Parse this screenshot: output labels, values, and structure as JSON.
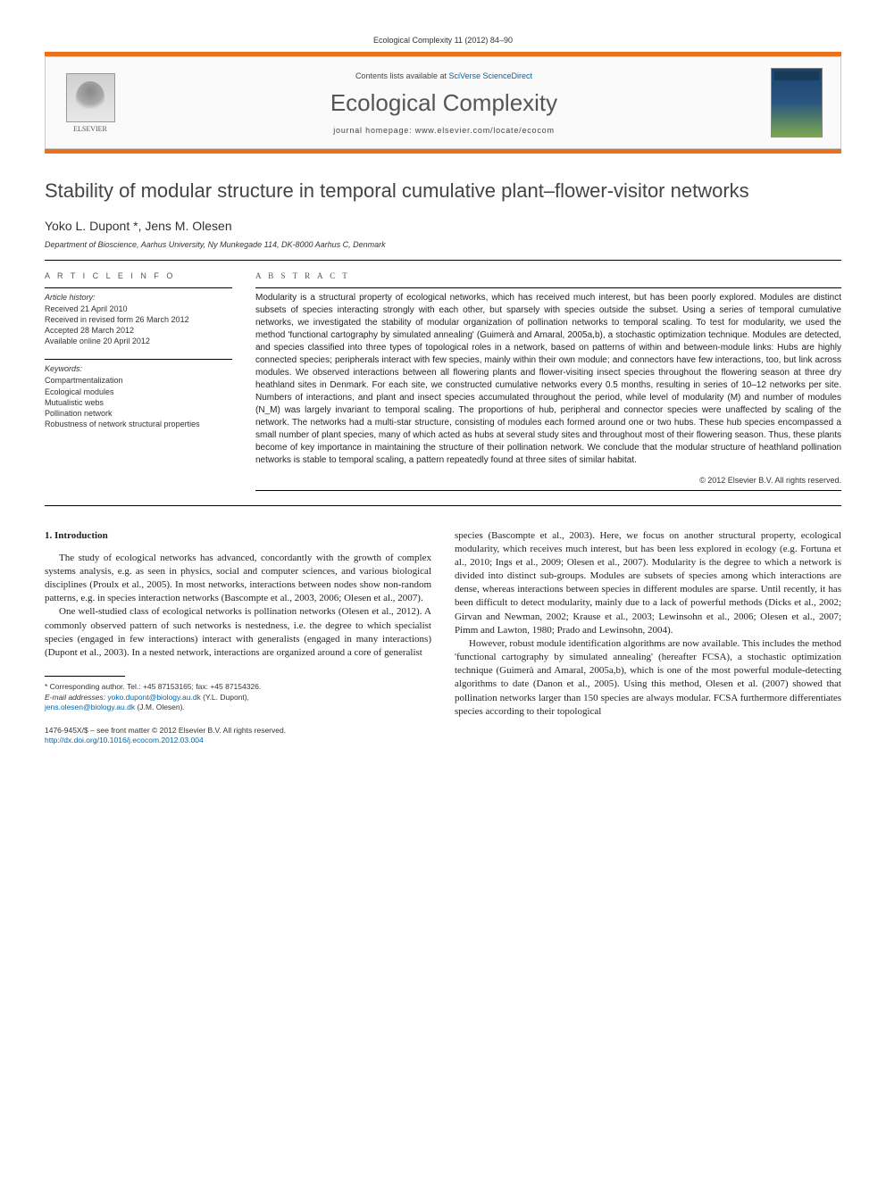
{
  "header": {
    "citation": "Ecological Complexity 11 (2012) 84–90",
    "contents_prefix": "Contents lists available at ",
    "contents_link": "SciVerse ScienceDirect",
    "journal_title": "Ecological Complexity",
    "homepage_prefix": "journal homepage: ",
    "homepage_url": "www.elsevier.com/locate/ecocom",
    "publisher": "ELSEVIER"
  },
  "article": {
    "title": "Stability of modular structure in temporal cumulative plant–flower-visitor networks",
    "authors": "Yoko L. Dupont *, Jens M. Olesen",
    "affiliation": "Department of Bioscience, Aarhus University, Ny Munkegade 114, DK-8000 Aarhus C, Denmark"
  },
  "article_info": {
    "heading": "A R T I C L E   I N F O",
    "history_label": "Article history:",
    "history": [
      "Received 21 April 2010",
      "Received in revised form 26 March 2012",
      "Accepted 28 March 2012",
      "Available online 20 April 2012"
    ],
    "keywords_label": "Keywords:",
    "keywords": [
      "Compartmentalization",
      "Ecological modules",
      "Mutualistic webs",
      "Pollination network",
      "Robustness of network structural properties"
    ]
  },
  "abstract": {
    "heading": "A B S T R A C T",
    "text_full": "Modularity is a structural property of ecological networks, which has received much interest, but has been poorly explored. Modules are distinct subsets of species interacting strongly with each other, but sparsely with species outside the subset. Using a series of temporal cumulative networks, we investigated the stability of modular organization of pollination networks to temporal scaling. To test for modularity, we used the method 'functional cartography by simulated annealing' (Guimerà and Amaral, 2005a,b), a stochastic optimization technique. Modules are detected, and species classified into three types of topological roles in a network, based on patterns of within and between-module links: Hubs are highly connected species; peripherals interact with few species, mainly within their own module; and connectors have few interactions, too, but link across modules. We observed interactions between all flowering plants and flower-visiting insect species throughout the flowering season at three dry heathland sites in Denmark. For each site, we constructed cumulative networks every 0.5 months, resulting in series of 10–12 networks per site. Numbers of interactions, and plant and insect species accumulated throughout the period, while level of modularity (M) and number of modules (N_M) was largely invariant to temporal scaling. The proportions of hub, peripheral and connector species were unaffected by scaling of the network. The networks had a multi-star structure, consisting of modules each formed around one or two hubs. These hub species encompassed a small number of plant species, many of which acted as hubs at several study sites and throughout most of their flowering season. Thus, these plants become of key importance in maintaining the structure of their pollination network. We conclude that the modular structure of heathland pollination networks is stable to temporal scaling, a pattern repeatedly found at three sites of similar habitat.",
    "copyright": "© 2012 Elsevier B.V. All rights reserved."
  },
  "body": {
    "section_heading": "1. Introduction",
    "col1_p1": "The study of ecological networks has advanced, concordantly with the growth of complex systems analysis, e.g. as seen in physics, social and computer sciences, and various biological disciplines (Proulx et al., 2005). In most networks, interactions between nodes show non-random patterns, e.g. in species interaction networks (Bascompte et al., 2003, 2006; Olesen et al., 2007).",
    "col1_p2": "One well-studied class of ecological networks is pollination networks (Olesen et al., 2012). A commonly observed pattern of such networks is nestedness, i.e. the degree to which specialist species (engaged in few interactions) interact with generalists (engaged in many interactions) (Dupont et al., 2003). In a nested network, interactions are organized around a core of generalist",
    "col2_p1": "species (Bascompte et al., 2003). Here, we focus on another structural property, ecological modularity, which receives much interest, but has been less explored in ecology (e.g. Fortuna et al., 2010; Ings et al., 2009; Olesen et al., 2007). Modularity is the degree to which a network is divided into distinct sub-groups. Modules are subsets of species among which interactions are dense, whereas interactions between species in different modules are sparse. Until recently, it has been difficult to detect modularity, mainly due to a lack of powerful methods (Dicks et al., 2002; Girvan and Newman, 2002; Krause et al., 2003; Lewinsohn et al., 2006; Olesen et al., 2007; Pimm and Lawton, 1980; Prado and Lewinsohn, 2004).",
    "col2_p2": "However, robust module identification algorithms are now available. This includes the method 'functional cartography by simulated annealing' (hereafter FCSA), a stochastic optimization technique (Guimerà and Amaral, 2005a,b), which is one of the most powerful module-detecting algorithms to date (Danon et al., 2005). Using this method, Olesen et al. (2007) showed that pollination networks larger than 150 species are always modular. FCSA furthermore differentiates species according to their topological"
  },
  "footnote": {
    "corr_text": "* Corresponding author. Tel.: +45 87153165; fax: +45 87154326.",
    "email_label": "E-mail addresses: ",
    "email1": "yoko.dupont@biology.au.dk",
    "email1_who": " (Y.L. Dupont),",
    "email2": "jens.olesen@biology.au.dk",
    "email2_who": " (J.M. Olesen)."
  },
  "bottom": {
    "issn_line": "1476-945X/$ – see front matter © 2012 Elsevier B.V. All rights reserved.",
    "doi": "http://dx.doi.org/10.1016/j.ecocom.2012.03.004"
  },
  "colors": {
    "orange_bar": "#e9711c",
    "link": "#0066aa",
    "text": "#222222",
    "meta": "#555555"
  }
}
